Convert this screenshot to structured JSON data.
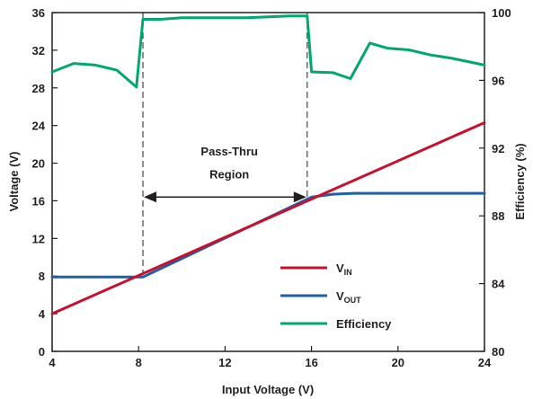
{
  "chart_data": {
    "type": "line",
    "title": "",
    "xlabel": "Input Voltage (V)",
    "ylabel": "Voltage (V)",
    "y2label": "Efficiency (%)",
    "xlim": [
      4,
      24
    ],
    "ylim": [
      0,
      36
    ],
    "y2lim": [
      80,
      100
    ],
    "xticks": [
      4,
      8,
      12,
      16,
      20,
      24
    ],
    "yticks": [
      0,
      4,
      8,
      12,
      16,
      20,
      24,
      28,
      32,
      36
    ],
    "y2ticks": [
      80,
      84,
      88,
      92,
      96,
      100
    ],
    "grid": false,
    "legend_position": "bottom-right",
    "series": [
      {
        "name": "VIN",
        "legend_main": "V",
        "legend_sub": "IN",
        "color": "#c8102e",
        "axis": "left",
        "x": [
          4,
          24
        ],
        "y": [
          4.0,
          24.3
        ]
      },
      {
        "name": "VOUT",
        "legend_main": "V",
        "legend_sub": "OUT",
        "color": "#1f5fa8",
        "axis": "left",
        "x": [
          4,
          8.2,
          16.0,
          17.0,
          18.0,
          24.0
        ],
        "y": [
          7.9,
          7.9,
          16.4,
          16.7,
          16.8,
          16.8
        ]
      },
      {
        "name": "Efficiency",
        "legend_main": "Efficiency",
        "legend_sub": "",
        "color": "#00a76f",
        "axis": "right",
        "x": [
          4,
          5,
          6,
          7,
          7.9,
          8.2,
          9,
          10,
          11,
          12,
          13,
          14,
          15,
          15.8,
          16.0,
          17.0,
          17.8,
          18.7,
          19.5,
          20.5,
          21.5,
          22.5,
          24.0
        ],
        "y": [
          96.5,
          97.0,
          96.9,
          96.6,
          95.6,
          99.6,
          99.6,
          99.7,
          99.7,
          99.7,
          99.7,
          99.75,
          99.8,
          99.8,
          96.5,
          96.45,
          96.1,
          98.2,
          97.9,
          97.8,
          97.5,
          97.3,
          96.9
        ]
      }
    ],
    "annotations": [
      {
        "text": "Pass-Thru",
        "x": 12.2,
        "y": 20.8
      },
      {
        "text": "Region",
        "x": 12.2,
        "y": 18.4
      }
    ],
    "pass_thru_region": [
      8.2,
      15.8
    ]
  }
}
